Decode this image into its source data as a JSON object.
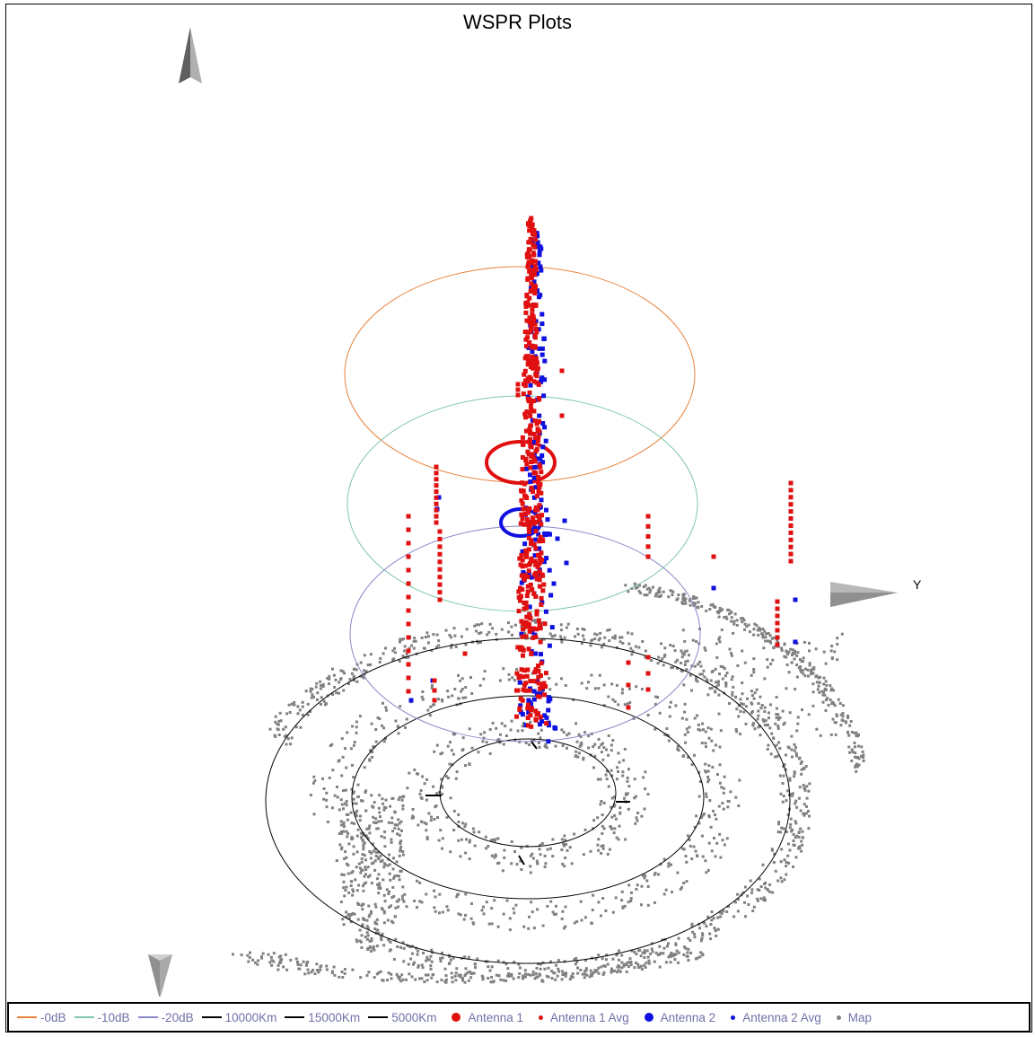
{
  "chart_data": {
    "type": "scatter",
    "title": "WSPR Plots",
    "axis_label_y": "Y",
    "legend": [
      {
        "label": "-0dB",
        "kind": "line",
        "color": "#e8823c"
      },
      {
        "label": "-10dB",
        "kind": "line",
        "color": "#80c8a8"
      },
      {
        "label": "-20dB",
        "kind": "line",
        "color": "#8888c8"
      },
      {
        "label": "10000Km",
        "kind": "line",
        "color": "#000000"
      },
      {
        "label": "15000Km",
        "kind": "line",
        "color": "#000000"
      },
      {
        "label": "5000Km",
        "kind": "line",
        "color": "#000000"
      },
      {
        "label": "Antenna 1",
        "kind": "dot",
        "color": "#e01010"
      },
      {
        "label": "Antenna 1 Avg",
        "kind": "smalldot",
        "color": "#e01010"
      },
      {
        "label": "Antenna 2",
        "kind": "dot",
        "color": "#1010e0"
      },
      {
        "label": "Antenna 2 Avg",
        "kind": "smalldot",
        "color": "#1010e0"
      },
      {
        "label": "Map",
        "kind": "smalldot",
        "color": "#808080"
      }
    ],
    "colors": {
      "antenna1": "#e01010",
      "antenna2": "#1010e0",
      "map": "#808080",
      "ring_0db": "#e8823c",
      "ring_10db": "#80c8a8",
      "ring_20db": "#8888c8",
      "ring_km": "#000000"
    },
    "grid": false,
    "legend_position": "bottom"
  }
}
